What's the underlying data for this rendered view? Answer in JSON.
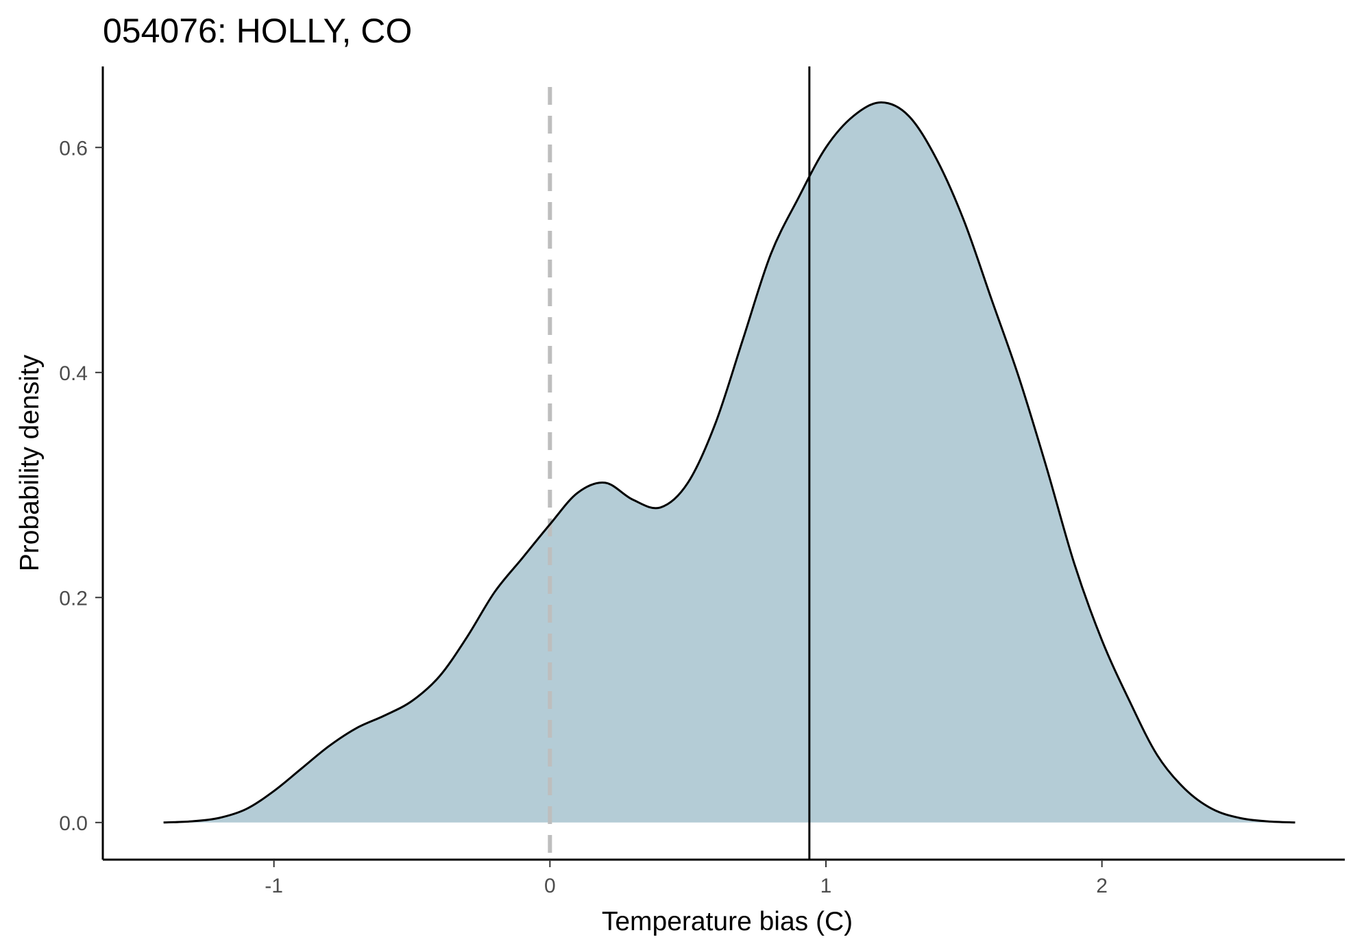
{
  "chart_data": {
    "type": "area",
    "title": "054076: HOLLY, CO",
    "xlabel": "Temperature bias (C)",
    "ylabel": "Probability density",
    "xlim": [
      -1.62,
      2.88
    ],
    "ylim": [
      -0.033,
      0.672
    ],
    "x_ticks": [
      -1,
      0,
      1,
      2
    ],
    "x_tick_labels": [
      "-1",
      "0",
      "1",
      "2"
    ],
    "y_ticks": [
      0.0,
      0.2,
      0.4,
      0.6
    ],
    "y_tick_labels": [
      "0.0",
      "0.2",
      "0.4",
      "0.6"
    ],
    "grid": false,
    "legend": "none",
    "fill_color": "#b4ccd6",
    "line_color": "#000000",
    "reference_line": {
      "x": 0,
      "style": "dashed",
      "color": "#bebebe"
    },
    "mean_line": {
      "x": 0.94,
      "style": "solid",
      "color": "#000000"
    },
    "density": {
      "x": [
        -1.4,
        -1.3,
        -1.2,
        -1.1,
        -1.0,
        -0.9,
        -0.8,
        -0.7,
        -0.6,
        -0.5,
        -0.4,
        -0.3,
        -0.2,
        -0.1,
        0.0,
        0.1,
        0.2,
        0.3,
        0.4,
        0.5,
        0.6,
        0.7,
        0.8,
        0.9,
        1.0,
        1.1,
        1.2,
        1.3,
        1.4,
        1.5,
        1.6,
        1.7,
        1.8,
        1.9,
        2.0,
        2.1,
        2.2,
        2.3,
        2.4,
        2.5,
        2.6,
        2.7
      ],
      "y": [
        0.0,
        0.001,
        0.004,
        0.012,
        0.028,
        0.048,
        0.068,
        0.084,
        0.095,
        0.108,
        0.13,
        0.165,
        0.205,
        0.235,
        0.265,
        0.293,
        0.302,
        0.287,
        0.28,
        0.302,
        0.355,
        0.43,
        0.505,
        0.555,
        0.6,
        0.628,
        0.64,
        0.628,
        0.59,
        0.535,
        0.465,
        0.395,
        0.315,
        0.23,
        0.162,
        0.108,
        0.06,
        0.03,
        0.012,
        0.004,
        0.001,
        0.0
      ]
    }
  }
}
